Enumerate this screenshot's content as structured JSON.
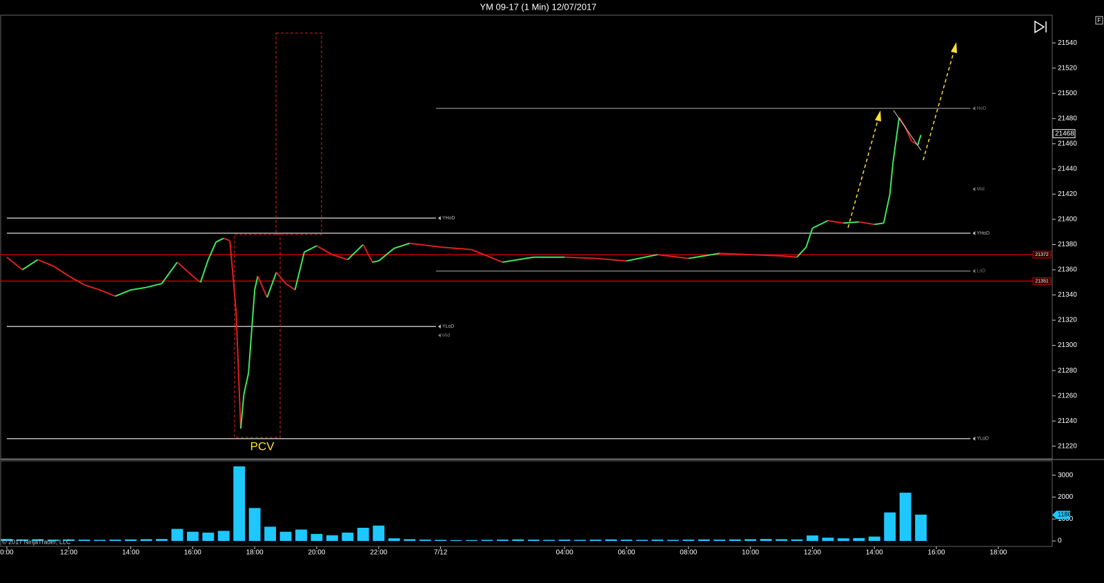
{
  "chart_data": [
    {
      "type": "line",
      "title": "YM 09-17 (1 Min)  12/07/2017",
      "x": [
        0,
        0.5,
        1,
        1.5,
        2,
        2.5,
        3,
        3.5,
        4,
        4.5,
        5,
        5.5,
        6,
        6.25,
        6.5,
        6.75,
        7,
        7.2,
        7.4,
        7.55,
        7.65,
        7.8,
        8,
        8.1,
        8.4,
        8.7,
        9,
        9.3,
        9.6,
        10,
        10.5,
        11,
        11.5,
        11.8,
        12,
        12.5,
        13,
        14,
        15,
        16,
        17,
        18,
        19,
        20,
        21,
        22,
        23,
        24,
        25,
        25.5,
        25.8,
        26,
        26.5,
        27,
        27.5,
        28,
        28.3,
        28.5,
        28.6,
        28.8,
        29,
        29.2,
        29.4,
        29.5
      ],
      "values": [
        21370,
        21360,
        21368,
        21363,
        21355,
        21348,
        21344,
        21339,
        21344,
        21346,
        21349,
        21366,
        21355,
        21350,
        21368,
        21382,
        21385,
        21383,
        21327,
        21234,
        21261,
        21278,
        21344,
        21355,
        21338,
        21358,
        21349,
        21344,
        21374,
        21379,
        21372,
        21368,
        21380,
        21366,
        21367,
        21377,
        21381,
        21378,
        21376,
        21366,
        21370,
        21370,
        21369,
        21367,
        21372,
        21369,
        21373,
        21372,
        21371,
        21370,
        21378,
        21393,
        21399,
        21397,
        21398,
        21396,
        21397,
        21420,
        21445,
        21481,
        21473,
        21462,
        21459,
        21467
      ],
      "up_color": "#3ee860",
      "down_color": "#e02020",
      "xlim": [
        -0.22,
        33.74
      ],
      "ylim": [
        21210,
        21562
      ],
      "yticks": [
        21220,
        21240,
        21260,
        21280,
        21300,
        21320,
        21340,
        21360,
        21380,
        21400,
        21420,
        21440,
        21460,
        21480,
        21500,
        21520,
        21540
      ],
      "levels": [
        {
          "label": "YHoD",
          "value": 21401,
          "x": [
            0,
            13.85
          ],
          "color": "#bbbbbb"
        },
        {
          "label": "YHoD",
          "value": 21389,
          "x": [
            0,
            31.1
          ],
          "color": "#bbbbbb"
        },
        {
          "label": "YLoD",
          "value": 21315,
          "x": [
            0,
            13.85
          ],
          "color": "#bbbbbb"
        },
        {
          "label": "Mid",
          "value": 21308,
          "x": [
            13.85,
            13.85
          ],
          "color": "#777777"
        },
        {
          "label": "HoD",
          "value": 21488,
          "x": [
            13.85,
            31.1
          ],
          "color": "#777777"
        },
        {
          "label": "Mid",
          "value": 21424,
          "x": [
            31.1,
            31.1
          ],
          "color": "#777777"
        },
        {
          "label": "LoD",
          "value": 21359,
          "x": [
            13.85,
            31.1
          ],
          "color": "#777777"
        },
        {
          "label": "YLoD",
          "value": 21226,
          "x": [
            0,
            31.1
          ],
          "color": "#bbbbbb"
        }
      ],
      "price_lines": [
        {
          "value": 21372,
          "color": "#c00000"
        },
        {
          "value": 21351,
          "color": "#c00000"
        }
      ],
      "last_price": 21468,
      "annotation": "PCV"
    },
    {
      "type": "bar",
      "color": "#1ec8ff",
      "x": [
        0,
        0.5,
        1,
        1.5,
        2,
        2.5,
        3,
        3.5,
        4,
        4.5,
        5,
        5.5,
        6,
        6.5,
        7,
        7.5,
        8,
        8.5,
        9,
        9.5,
        10,
        10.5,
        11,
        11.5,
        12,
        12.5,
        13,
        13.5,
        14,
        14.5,
        15,
        15.5,
        16,
        16.5,
        17,
        17.5,
        18,
        18.5,
        19,
        19.5,
        20,
        20.5,
        21,
        21.5,
        22,
        22.5,
        23,
        23.5,
        24,
        24.5,
        25,
        25.5,
        26,
        26.5,
        27,
        27.5,
        28,
        28.5,
        29,
        29.5
      ],
      "values": [
        90,
        70,
        80,
        60,
        70,
        60,
        50,
        60,
        70,
        80,
        90,
        550,
        420,
        380,
        460,
        3400,
        1500,
        650,
        420,
        520,
        320,
        260,
        380,
        600,
        700,
        120,
        80,
        60,
        50,
        40,
        40,
        50,
        60,
        70,
        60,
        50,
        60,
        50,
        60,
        70,
        60,
        50,
        60,
        50,
        60,
        70,
        60,
        70,
        80,
        90,
        80,
        70,
        250,
        150,
        120,
        130,
        200,
        1300,
        2200,
        1200
      ],
      "xlim": [
        -0.22,
        33.74
      ],
      "ylim": [
        -250,
        3650
      ],
      "yticks": [
        0,
        1000,
        2000,
        3000
      ],
      "xticks": [
        {
          "value": 0,
          "label": "0:00"
        },
        {
          "value": 2,
          "label": "12:00"
        },
        {
          "value": 4,
          "label": "14:00"
        },
        {
          "value": 6,
          "label": "16:00"
        },
        {
          "value": 8,
          "label": "18:00"
        },
        {
          "value": 10,
          "label": "20:00"
        },
        {
          "value": 12,
          "label": "22:00"
        },
        {
          "value": 14,
          "label": "7/12"
        },
        {
          "value": 18,
          "label": "04:00"
        },
        {
          "value": 20,
          "label": "06:00"
        },
        {
          "value": 22,
          "label": "08:00"
        },
        {
          "value": 24,
          "label": "10:00"
        },
        {
          "value": 26,
          "label": "12:00"
        },
        {
          "value": 28,
          "label": "14:00"
        },
        {
          "value": 30,
          "label": "16:00"
        },
        {
          "value": 32,
          "label": "18:00"
        }
      ],
      "last_value": 1186
    }
  ],
  "footer": "© 2017 NinjaTrader, LLC",
  "corner_button": "F"
}
